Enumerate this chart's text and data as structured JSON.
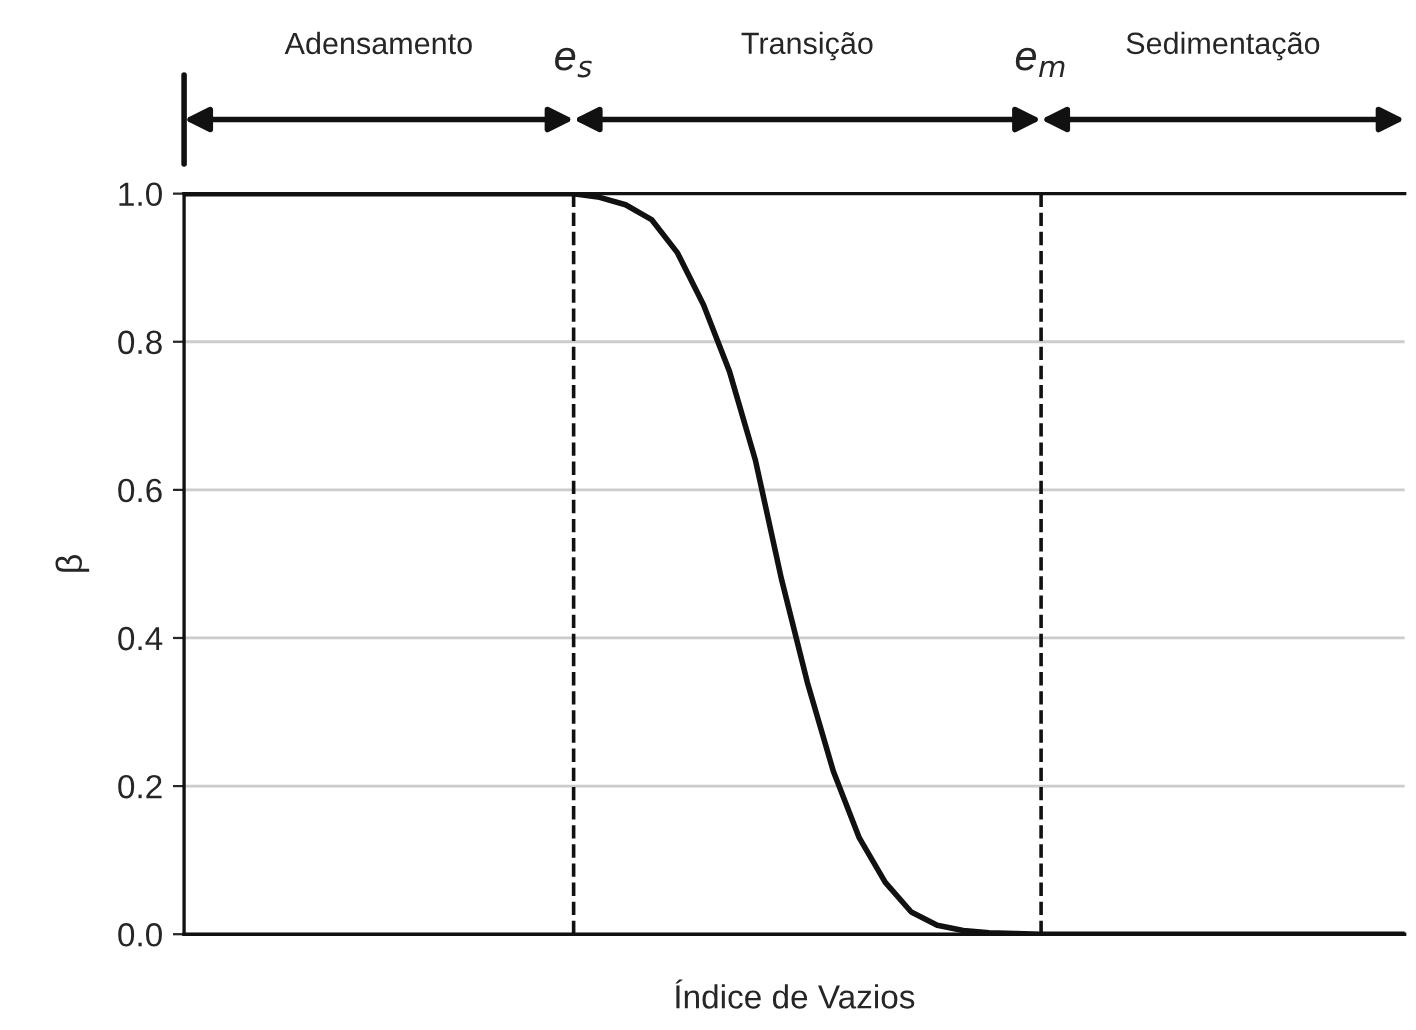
{
  "chart_data": {
    "type": "line",
    "xlabel": "Índice de Vazios",
    "ylabel": "β",
    "categories": [
      null,
      null,
      null,
      null,
      null,
      null,
      null,
      null,
      null,
      null,
      null,
      null,
      null,
      null,
      null,
      null,
      null,
      null,
      null,
      null,
      null,
      null,
      null,
      null,
      null,
      null,
      null,
      null,
      null,
      null,
      null,
      null,
      null,
      null,
      null,
      null,
      null,
      null,
      null,
      null,
      null,
      null,
      null,
      null,
      null,
      null,
      null,
      null
    ],
    "series": [
      {
        "color": "#111111",
        "values": [
          1,
          1,
          1,
          1,
          1,
          1,
          1,
          1,
          1,
          1,
          1,
          1,
          1,
          1,
          1,
          1,
          0.995,
          0.985,
          0.965,
          0.92,
          0.85,
          0.76,
          0.64,
          0.48,
          0.34,
          0.22,
          0.13,
          0.07,
          0.03,
          0.012,
          0.005,
          0.002,
          0.001,
          0,
          0,
          0,
          0,
          0,
          0,
          0,
          0,
          0,
          0,
          0,
          0,
          0,
          0,
          0
        ]
      }
    ],
    "ylim": [
      0,
      1
    ],
    "yticks": [
      {
        "value": 0,
        "label": "0.0"
      },
      {
        "value": 0.2,
        "label": "0.2"
      },
      {
        "value": 0.4,
        "label": "0.4"
      },
      {
        "value": 0.6,
        "label": "0.6"
      },
      {
        "value": 0.8,
        "label": "0.8"
      },
      {
        "value": 1,
        "label": "1.0"
      }
    ],
    "grid": "y",
    "tick_labels": "y",
    "marker": "none",
    "line_style": "solid",
    "annotations": [
      "Adensamento",
      "e$_{s}$",
      "Transição",
      "e$_{m}$",
      "Sedimentação"
    ]
  }
}
